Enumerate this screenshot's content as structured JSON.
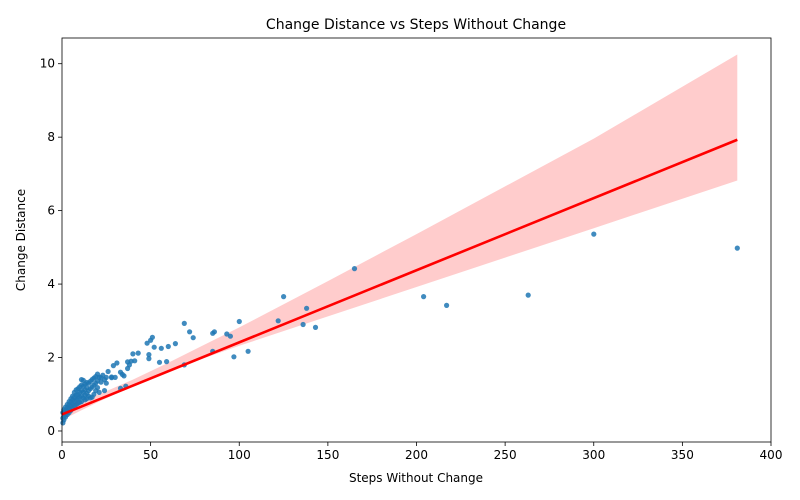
{
  "chart_data": {
    "type": "scatter",
    "title": "Change Distance vs Steps Without Change",
    "xlabel": "Steps Without Change",
    "ylabel": "Change Distance",
    "xlim": [
      0,
      400
    ],
    "ylim": [
      -0.3,
      10.7
    ],
    "xticks": [
      "0",
      "50",
      "100",
      "150",
      "200",
      "250",
      "300",
      "350",
      "400"
    ],
    "yticks": [
      "0",
      "2",
      "4",
      "6",
      "8",
      "10"
    ],
    "grid": false,
    "legend": "none",
    "point_color": "#1f77b4",
    "line_color": "#ff0000",
    "band_color": "#ffcccc",
    "regression": {
      "x0": 0,
      "y0": 0.45,
      "x1": 381,
      "y1": 7.93
    },
    "confidence_band": [
      {
        "x": 0,
        "lo": 0.3,
        "hi": 0.6
      },
      {
        "x": 20,
        "lo": 0.78,
        "hi": 0.98
      },
      {
        "x": 40,
        "lo": 1.22,
        "hi": 1.4
      },
      {
        "x": 60,
        "lo": 1.62,
        "hi": 1.86
      },
      {
        "x": 80,
        "lo": 1.98,
        "hi": 2.34
      },
      {
        "x": 100,
        "lo": 2.32,
        "hi": 2.82
      },
      {
        "x": 150,
        "lo": 3.12,
        "hi": 4.08
      },
      {
        "x": 200,
        "lo": 3.92,
        "hi": 5.36
      },
      {
        "x": 250,
        "lo": 4.72,
        "hi": 6.66
      },
      {
        "x": 300,
        "lo": 5.52,
        "hi": 7.96
      },
      {
        "x": 381,
        "lo": 6.82,
        "hi": 10.25
      }
    ],
    "points": [
      [
        381,
        4.98
      ],
      [
        300,
        5.36
      ],
      [
        263,
        3.7
      ],
      [
        217,
        3.42
      ],
      [
        204,
        3.66
      ],
      [
        165,
        4.42
      ],
      [
        143,
        2.82
      ],
      [
        138,
        3.34
      ],
      [
        136,
        2.9
      ],
      [
        125,
        3.66
      ],
      [
        122,
        3.0
      ],
      [
        105,
        2.17
      ],
      [
        100,
        2.98
      ],
      [
        97,
        2.02
      ],
      [
        95,
        2.58
      ],
      [
        93,
        2.64
      ],
      [
        86,
        2.7
      ],
      [
        85,
        2.66
      ],
      [
        85,
        2.17
      ],
      [
        74,
        2.54
      ],
      [
        72,
        2.7
      ],
      [
        69,
        2.93
      ],
      [
        69,
        1.8
      ],
      [
        64,
        2.38
      ],
      [
        60,
        2.3
      ],
      [
        59,
        1.89
      ],
      [
        56,
        2.25
      ],
      [
        55,
        1.87
      ],
      [
        52,
        2.28
      ],
      [
        51,
        2.55
      ],
      [
        50,
        2.47
      ],
      [
        49,
        2.08
      ],
      [
        49,
        1.97
      ],
      [
        48,
        2.39
      ],
      [
        43,
        2.12
      ],
      [
        41,
        1.91
      ],
      [
        40,
        2.1
      ],
      [
        39,
        1.9
      ],
      [
        38,
        1.8
      ],
      [
        37,
        1.7
      ],
      [
        37,
        1.88
      ],
      [
        36,
        1.22
      ],
      [
        35,
        1.5
      ],
      [
        34,
        1.54
      ],
      [
        33,
        1.6
      ],
      [
        33,
        1.16
      ],
      [
        31,
        1.85
      ],
      [
        30,
        1.46
      ],
      [
        29,
        1.78
      ],
      [
        28,
        1.47
      ],
      [
        28,
        1.45
      ],
      [
        26,
        1.62
      ],
      [
        25,
        1.3
      ],
      [
        25,
        1.46
      ],
      [
        24,
        1.1
      ],
      [
        24,
        1.4
      ],
      [
        23,
        1.52
      ],
      [
        22,
        1.45
      ],
      [
        22,
        1.33
      ],
      [
        21,
        1.46
      ],
      [
        21,
        1.05
      ],
      [
        20,
        1.55
      ],
      [
        20,
        1.36
      ],
      [
        20,
        1.18
      ],
      [
        19,
        1.48
      ],
      [
        19,
        1.3
      ],
      [
        19,
        1.1
      ],
      [
        18,
        1.44
      ],
      [
        18,
        1.25
      ],
      [
        18,
        1.0
      ],
      [
        17,
        1.4
      ],
      [
        17,
        1.2
      ],
      [
        17,
        0.92
      ],
      [
        16,
        1.35
      ],
      [
        16,
        1.15
      ],
      [
        16,
        0.9
      ],
      [
        15,
        1.3
      ],
      [
        15,
        1.1
      ],
      [
        15,
        0.95
      ],
      [
        14,
        1.32
      ],
      [
        14,
        1.18
      ],
      [
        14,
        1.02
      ],
      [
        14,
        0.88
      ],
      [
        13,
        1.28
      ],
      [
        13,
        1.12
      ],
      [
        13,
        0.98
      ],
      [
        13,
        0.85
      ],
      [
        12,
        1.38
      ],
      [
        12,
        1.22
      ],
      [
        12,
        1.06
      ],
      [
        12,
        0.9
      ],
      [
        11,
        1.4
      ],
      [
        11,
        1.25
      ],
      [
        11,
        1.1
      ],
      [
        11,
        0.95
      ],
      [
        11,
        0.8
      ],
      [
        10,
        1.2
      ],
      [
        10,
        1.05
      ],
      [
        10,
        0.92
      ],
      [
        10,
        0.78
      ],
      [
        9,
        1.15
      ],
      [
        9,
        1.0
      ],
      [
        9,
        0.88
      ],
      [
        9,
        0.75
      ],
      [
        8,
        1.12
      ],
      [
        8,
        0.98
      ],
      [
        8,
        0.85
      ],
      [
        8,
        0.72
      ],
      [
        7,
        1.05
      ],
      [
        7,
        0.92
      ],
      [
        7,
        0.8
      ],
      [
        7,
        0.68
      ],
      [
        6,
        0.95
      ],
      [
        6,
        0.85
      ],
      [
        6,
        0.74
      ],
      [
        6,
        0.62
      ],
      [
        5,
        0.88
      ],
      [
        5,
        0.78
      ],
      [
        5,
        0.68
      ],
      [
        5,
        0.56
      ],
      [
        4,
        0.8
      ],
      [
        4,
        0.7
      ],
      [
        4,
        0.6
      ],
      [
        4,
        0.5
      ],
      [
        3,
        0.72
      ],
      [
        3,
        0.63
      ],
      [
        3,
        0.54
      ],
      [
        3,
        0.45
      ],
      [
        2,
        0.65
      ],
      [
        2,
        0.56
      ],
      [
        2,
        0.47
      ],
      [
        2,
        0.38
      ],
      [
        1,
        0.58
      ],
      [
        1,
        0.49
      ],
      [
        1,
        0.4
      ],
      [
        1,
        0.3
      ],
      [
        0.5,
        0.35
      ],
      [
        0.5,
        0.22
      ],
      [
        0.5,
        0.5
      ]
    ]
  }
}
